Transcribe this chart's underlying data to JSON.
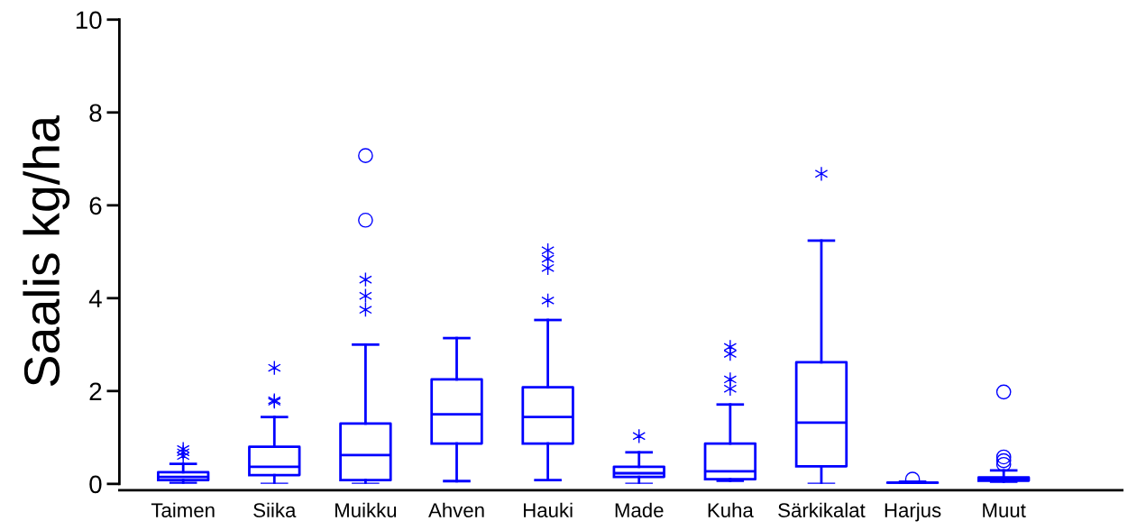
{
  "chart_data": {
    "type": "box",
    "ylabel": "Saalis kg/ha",
    "color": "#0000ff",
    "categories": [
      "Taimen",
      "Siika",
      "Muikku",
      "Ahven",
      "Hauki",
      "Made",
      "Kuha",
      "Särkikalat",
      "Harjus",
      "Muut"
    ],
    "boxes": [
      {
        "low": 0.02,
        "q1": 0.08,
        "median": 0.15,
        "q3": 0.25,
        "high": 0.43,
        "outliers": [
          0.6,
          0.68,
          0.75
        ]
      },
      {
        "low": 0.0,
        "q1": 0.19,
        "median": 0.37,
        "q3": 0.8,
        "high": 1.44,
        "outliers": [
          1.77,
          1.8,
          2.5
        ]
      },
      {
        "low": 0.0,
        "q1": 0.08,
        "median": 0.62,
        "q3": 1.3,
        "high": 3.0,
        "outliers": [
          3.75,
          4.05,
          4.4,
          5.68,
          7.07
        ]
      },
      {
        "low": 0.06,
        "q1": 0.87,
        "median": 1.5,
        "q3": 2.25,
        "high": 3.14
      },
      {
        "low": 0.08,
        "q1": 0.87,
        "median": 1.44,
        "q3": 2.08,
        "high": 3.53,
        "outliers": [
          3.95,
          4.65,
          4.85,
          5.03
        ]
      },
      {
        "low": 0.0,
        "q1": 0.15,
        "median": 0.23,
        "q3": 0.37,
        "high": 0.68,
        "outliers": [
          1.03
        ]
      },
      {
        "low": 0.07,
        "q1": 0.1,
        "median": 0.27,
        "q3": 0.87,
        "high": 1.71,
        "outliers": [
          2.05,
          2.25,
          2.8,
          2.95
        ]
      },
      {
        "low": 0.0,
        "q1": 0.38,
        "median": 1.32,
        "q3": 2.62,
        "high": 5.24,
        "outliers": [
          6.68
        ]
      },
      {
        "low": 0.0,
        "q1": 0.01,
        "median": 0.02,
        "q3": 0.03,
        "high": 0.05,
        "outliers": [
          0.1
        ]
      },
      {
        "low": 0.05,
        "q1": 0.07,
        "median": 0.1,
        "q3": 0.14,
        "high": 0.29,
        "outliers": [
          0.42,
          0.5,
          0.58,
          1.98
        ]
      }
    ],
    "ylim": [
      0,
      10
    ],
    "yticks": [
      0,
      2,
      4,
      6,
      8,
      10
    ],
    "grid": false
  }
}
